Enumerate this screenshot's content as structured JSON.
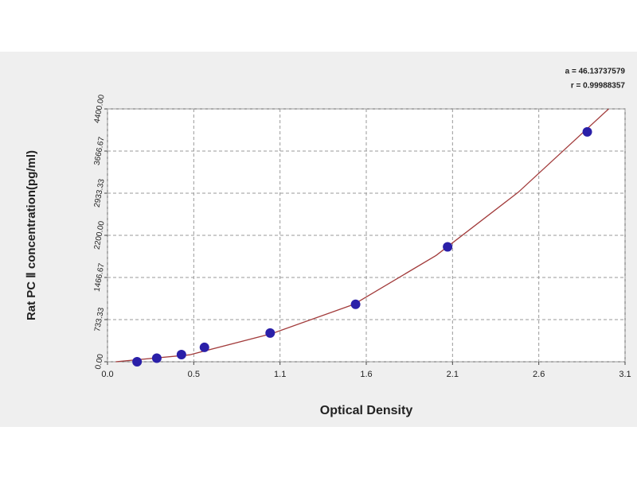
{
  "chart_data": {
    "type": "scatter",
    "x_label": "Optical Density",
    "y_label": "Rat PC Ⅱ concentration(pg/ml)",
    "annotations": [
      "a = 46.13737579",
      "r = 0.99988357"
    ],
    "xlim": [
      0,
      3.15
    ],
    "xticks": [
      {
        "value": 0,
        "label": "0.0"
      },
      {
        "value": 0.525,
        "label": "0.5"
      },
      {
        "value": 1.05,
        "label": "1.1"
      },
      {
        "value": 1.575,
        "label": "1.6"
      },
      {
        "value": 2.1,
        "label": "2.1"
      },
      {
        "value": 2.625,
        "label": "2.6"
      },
      {
        "value": 3.15,
        "label": "3.1"
      }
    ],
    "ylim": [
      0,
      4400
    ],
    "yticks": [
      {
        "value": 0,
        "label": "0.00"
      },
      {
        "value": 733.33,
        "label": "733.33"
      },
      {
        "value": 1466.67,
        "label": "1466.67"
      },
      {
        "value": 2200,
        "label": "2200.00"
      },
      {
        "value": 2933.33,
        "label": "2933.33"
      },
      {
        "value": 3666.67,
        "label": "3666.67"
      },
      {
        "value": 4400,
        "label": "4400.00"
      }
    ],
    "grid": true,
    "series": [
      {
        "color": "#2a1fa8",
        "x": [
          0.18,
          0.3,
          0.45,
          0.59,
          0.99,
          1.51,
          2.07,
          2.92
        ],
        "values": [
          0,
          62.5,
          125,
          250,
          500,
          1000,
          2000,
          4000
        ]
      }
    ],
    "curve": {
      "color": "#a23b3b",
      "x": [
        0.05,
        0.5,
        1.0,
        1.5,
        2.0,
        2.5,
        3.05
      ],
      "values": [
        0,
        120,
        490,
        1000,
        1850,
        2950,
        4400
      ]
    }
  }
}
